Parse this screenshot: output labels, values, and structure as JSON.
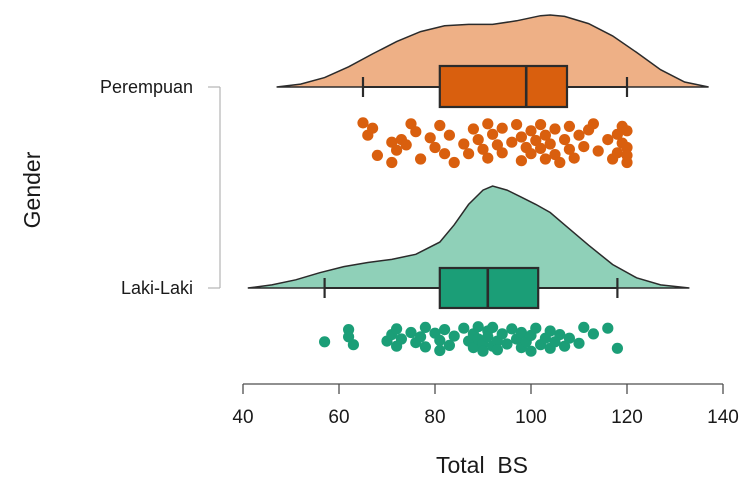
{
  "chart_data": {
    "type": "raincloud",
    "title": "",
    "xlabel": "Total  BS",
    "ylabel": "Gender",
    "xlim": [
      40,
      140
    ],
    "xticks": [
      "40",
      "60",
      "80",
      "100",
      "120",
      "140"
    ],
    "grid": false,
    "legend": "none",
    "groups": [
      {
        "name": "Perempuan",
        "fill": "#eeb086",
        "box_fill": "#d95f0e",
        "point_color": "#d95f0e",
        "density": {
          "x": [
            47,
            52,
            57,
            62,
            67,
            72,
            77,
            82,
            87,
            92,
            97,
            102,
            104,
            107,
            112,
            117,
            122,
            127,
            132,
            137
          ],
          "y": [
            0.0,
            0.04,
            0.13,
            0.28,
            0.46,
            0.63,
            0.77,
            0.85,
            0.87,
            0.87,
            0.92,
            0.99,
            1.0,
            0.98,
            0.88,
            0.71,
            0.48,
            0.24,
            0.07,
            0.0
          ]
        },
        "box": {
          "whisker_low": 65,
          "q1": 81,
          "median": 99,
          "q3": 107.5,
          "whisker_high": 120
        },
        "points": [
          [
            65,
            0.02
          ],
          [
            67,
            0.14
          ],
          [
            66,
            0.3
          ],
          [
            68,
            0.76
          ],
          [
            71,
            0.46
          ],
          [
            72,
            0.64
          ],
          [
            71,
            0.92
          ],
          [
            73,
            0.4
          ],
          [
            75,
            0.04
          ],
          [
            74,
            0.52
          ],
          [
            76,
            0.22
          ],
          [
            77,
            0.84
          ],
          [
            79,
            0.36
          ],
          [
            81,
            0.08
          ],
          [
            80,
            0.58
          ],
          [
            82,
            0.72
          ],
          [
            83,
            0.3
          ],
          [
            84,
            0.92
          ],
          [
            86,
            0.5
          ],
          [
            87,
            0.72
          ],
          [
            88,
            0.16
          ],
          [
            89,
            0.4
          ],
          [
            90,
            0.62
          ],
          [
            91,
            0.04
          ],
          [
            91,
            0.82
          ],
          [
            92,
            0.28
          ],
          [
            93,
            0.52
          ],
          [
            94,
            0.14
          ],
          [
            94,
            0.7
          ],
          [
            96,
            0.46
          ],
          [
            97,
            0.06
          ],
          [
            98,
            0.34
          ],
          [
            98,
            0.88
          ],
          [
            99,
            0.58
          ],
          [
            100,
            0.2
          ],
          [
            100,
            0.72
          ],
          [
            101,
            0.42
          ],
          [
            102,
            0.06
          ],
          [
            102,
            0.6
          ],
          [
            103,
            0.84
          ],
          [
            103,
            0.3
          ],
          [
            104,
            0.5
          ],
          [
            105,
            0.16
          ],
          [
            105,
            0.74
          ],
          [
            106,
            0.92
          ],
          [
            107,
            0.4
          ],
          [
            108,
            0.62
          ],
          [
            108,
            0.1
          ],
          [
            109,
            0.82
          ],
          [
            110,
            0.3
          ],
          [
            111,
            0.56
          ],
          [
            112,
            0.18
          ],
          [
            113,
            0.04
          ],
          [
            114,
            0.66
          ],
          [
            116,
            0.4
          ],
          [
            117,
            0.84
          ],
          [
            118,
            0.28
          ],
          [
            118,
            0.7
          ],
          [
            119,
            0.1
          ],
          [
            119,
            0.48
          ],
          [
            120,
            0.92
          ],
          [
            120,
            0.58
          ],
          [
            120,
            0.2
          ],
          [
            120,
            0.76
          ]
        ]
      },
      {
        "name": "Laki-Laki",
        "fill": "#8fd0b8",
        "box_fill": "#1b9e77",
        "point_color": "#1b9e77",
        "density": {
          "x": [
            41,
            46,
            51,
            56,
            61,
            66,
            71,
            76,
            81,
            84,
            87,
            90,
            92,
            95,
            98,
            101,
            104,
            107,
            112,
            117,
            122,
            127,
            133
          ],
          "y": [
            0.0,
            0.03,
            0.08,
            0.15,
            0.21,
            0.25,
            0.28,
            0.33,
            0.45,
            0.62,
            0.82,
            0.96,
            1.0,
            0.96,
            0.89,
            0.82,
            0.74,
            0.62,
            0.42,
            0.23,
            0.1,
            0.03,
            0.0
          ]
        },
        "box": {
          "whisker_low": 57,
          "q1": 81,
          "median": 91,
          "q3": 101.5,
          "whisker_high": 118
        },
        "points": [
          [
            57,
            0.44
          ],
          [
            62,
            0.1
          ],
          [
            62,
            0.3
          ],
          [
            63,
            0.52
          ],
          [
            70,
            0.42
          ],
          [
            71,
            0.24
          ],
          [
            72,
            0.08
          ],
          [
            72,
            0.56
          ],
          [
            73,
            0.36
          ],
          [
            75,
            0.18
          ],
          [
            76,
            0.46
          ],
          [
            77,
            0.3
          ],
          [
            78,
            0.04
          ],
          [
            78,
            0.58
          ],
          [
            80,
            0.2
          ],
          [
            81,
            0.68
          ],
          [
            81,
            0.4
          ],
          [
            82,
            0.1
          ],
          [
            83,
            0.54
          ],
          [
            84,
            0.28
          ],
          [
            86,
            0.06
          ],
          [
            87,
            0.42
          ],
          [
            88,
            0.6
          ],
          [
            88,
            0.22
          ],
          [
            89,
            0.02
          ],
          [
            89,
            0.36
          ],
          [
            90,
            0.5
          ],
          [
            90,
            0.7
          ],
          [
            91,
            0.14
          ],
          [
            91,
            0.3
          ],
          [
            92,
            0.56
          ],
          [
            92,
            0.04
          ],
          [
            93,
            0.42
          ],
          [
            93,
            0.66
          ],
          [
            94,
            0.22
          ],
          [
            95,
            0.5
          ],
          [
            96,
            0.08
          ],
          [
            97,
            0.36
          ],
          [
            98,
            0.6
          ],
          [
            98,
            0.18
          ],
          [
            99,
            0.44
          ],
          [
            100,
            0.7
          ],
          [
            100,
            0.26
          ],
          [
            101,
            0.06
          ],
          [
            102,
            0.52
          ],
          [
            103,
            0.34
          ],
          [
            104,
            0.14
          ],
          [
            104,
            0.62
          ],
          [
            105,
            0.44
          ],
          [
            106,
            0.24
          ],
          [
            107,
            0.56
          ],
          [
            108,
            0.34
          ],
          [
            110,
            0.48
          ],
          [
            111,
            0.04
          ],
          [
            113,
            0.22
          ],
          [
            116,
            0.06
          ],
          [
            118,
            0.62
          ]
        ]
      }
    ]
  }
}
